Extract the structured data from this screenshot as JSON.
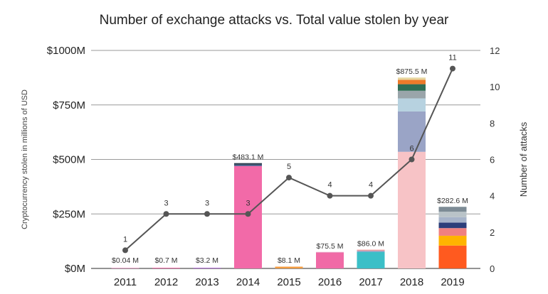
{
  "chart_data": {
    "type": "bar",
    "title": "Number of exchange attacks vs. Total value stolen by year",
    "ylabel": "Cryptocurrency stolen in millions of USD",
    "y2label": "Number of attacks",
    "ylim": [
      0,
      1000
    ],
    "y2lim": [
      0,
      12
    ],
    "yticks": [
      "$0M",
      "$250M",
      "$500M",
      "$750M",
      "$1000M"
    ],
    "y2ticks": [
      "0",
      "2",
      "4",
      "6",
      "8",
      "10",
      "12"
    ],
    "grid": true,
    "categories": [
      "2011",
      "2012",
      "2013",
      "2014",
      "2015",
      "2016",
      "2017",
      "2018",
      "2019"
    ],
    "bar_labels": [
      "$0.04 M",
      "$0.7 M",
      "$3.2 M",
      "$483.1 M",
      "$8.1 M",
      "$75.5 M",
      "$86.0 M",
      "$875.5 M",
      "$282.6 M"
    ],
    "bar_totals": [
      0.04,
      0.7,
      3.2,
      483.1,
      8.1,
      75.5,
      86.0,
      875.5,
      282.6
    ],
    "stacked_segments": [
      [
        {
          "value": 0.04,
          "color": "#e7a1c6"
        }
      ],
      [
        {
          "value": 0.7,
          "color": "#f06aa6"
        }
      ],
      [
        {
          "value": 3.2,
          "color": "#b46ed6"
        }
      ],
      [
        {
          "value": 470.0,
          "color": "#f26aa8"
        },
        {
          "value": 6.0,
          "color": "#3c5a87"
        },
        {
          "value": 7.1,
          "color": "#2c3e50"
        }
      ],
      [
        {
          "value": 8.1,
          "color": "#f39c40"
        }
      ],
      [
        {
          "value": 72.0,
          "color": "#f06aa6"
        },
        {
          "value": 3.5,
          "color": "#ea8fba"
        }
      ],
      [
        {
          "value": 76.0,
          "color": "#3bbfc7"
        },
        {
          "value": 5.0,
          "color": "#8e9ac0"
        },
        {
          "value": 5.0,
          "color": "#f4a0a0"
        }
      ],
      [
        {
          "value": 535.0,
          "color": "#f7c3c6"
        },
        {
          "value": 185.0,
          "color": "#9aa4c6"
        },
        {
          "value": 60.0,
          "color": "#b7d2e0"
        },
        {
          "value": 35.0,
          "color": "#9aa5aa"
        },
        {
          "value": 30.0,
          "color": "#2f6e55"
        },
        {
          "value": 20.0,
          "color": "#ee7a2a"
        },
        {
          "value": 10.5,
          "color": "#e7d6a0"
        }
      ],
      [
        {
          "value": 105.0,
          "color": "#ff5a1f"
        },
        {
          "value": 45.0,
          "color": "#ffb400"
        },
        {
          "value": 35.0,
          "color": "#f08080"
        },
        {
          "value": 25.0,
          "color": "#2c3e7a"
        },
        {
          "value": 25.0,
          "color": "#a6b3c9"
        },
        {
          "value": 25.0,
          "color": "#b9c3c8"
        },
        {
          "value": 22.6,
          "color": "#7d8b95"
        }
      ]
    ],
    "series": [
      {
        "name": "Number of attacks",
        "values": [
          1,
          3,
          3,
          3,
          5,
          4,
          4,
          6,
          11
        ],
        "point_labels": [
          "1",
          "3",
          "3",
          "3",
          "5",
          "4",
          "4",
          "6",
          "11"
        ],
        "color": "#555555"
      }
    ]
  }
}
